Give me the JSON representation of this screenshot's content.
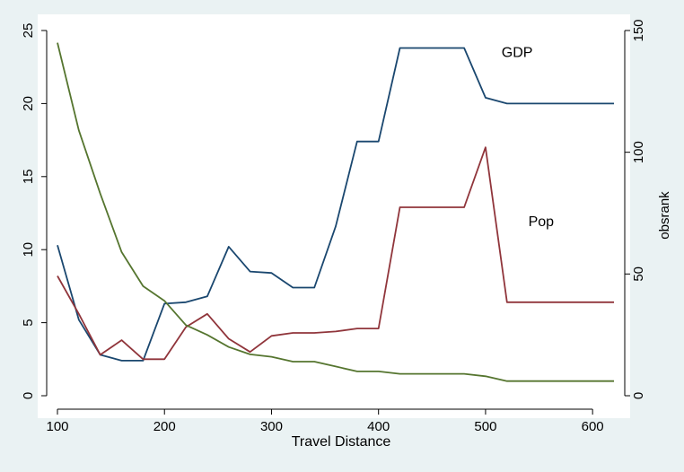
{
  "chart_data": {
    "type": "line",
    "title": "",
    "xlabel": "Travel Distance",
    "ylabel_left": "",
    "ylabel_right": "obsrank",
    "xlim": [
      100,
      620
    ],
    "ylim_left": [
      0,
      25
    ],
    "ylim_right": [
      0,
      150
    ],
    "x_ticks": [
      100,
      200,
      300,
      400,
      500,
      600
    ],
    "y_left_ticks": [
      0,
      5,
      10,
      15,
      20,
      25
    ],
    "y_right_ticks": [
      0,
      50,
      100,
      150
    ],
    "grid": false,
    "legend": "none",
    "annotations": [
      {
        "text": "GDP",
        "x": 515,
        "y": 23.2
      },
      {
        "text": "Pop",
        "x": 540,
        "y": 11.6
      }
    ],
    "series": [
      {
        "name": "GDP",
        "axis": "left",
        "color": "#1a476f",
        "x": [
          100,
          120,
          140,
          160,
          180,
          200,
          220,
          240,
          260,
          280,
          300,
          320,
          340,
          360,
          380,
          400,
          420,
          440,
          460,
          480,
          500,
          520,
          540,
          560,
          580,
          600,
          620
        ],
        "values": [
          10.3,
          5.2,
          2.8,
          2.4,
          2.4,
          6.3,
          6.4,
          6.8,
          10.2,
          8.5,
          8.4,
          7.4,
          7.4,
          11.6,
          17.4,
          17.4,
          23.8,
          23.8,
          23.8,
          23.8,
          20.4,
          20.0,
          20.0,
          20.0,
          20.0,
          20.0,
          20.0
        ]
      },
      {
        "name": "Pop",
        "axis": "left",
        "color": "#90353b",
        "x": [
          100,
          120,
          140,
          160,
          180,
          200,
          220,
          240,
          260,
          280,
          300,
          320,
          340,
          360,
          380,
          400,
          420,
          440,
          460,
          480,
          500,
          520,
          540,
          560,
          580,
          600,
          620
        ],
        "values": [
          8.2,
          5.6,
          2.8,
          3.8,
          2.5,
          2.5,
          4.7,
          5.6,
          3.9,
          3.0,
          4.1,
          4.3,
          4.3,
          4.4,
          4.6,
          4.6,
          12.9,
          12.9,
          12.9,
          12.9,
          17.0,
          6.4,
          6.4,
          6.4,
          6.4,
          6.4,
          6.4
        ]
      },
      {
        "name": "",
        "axis": "right",
        "color": "#55752f",
        "x": [
          100,
          120,
          140,
          160,
          180,
          200,
          220,
          240,
          260,
          280,
          300,
          320,
          340,
          360,
          380,
          400,
          420,
          440,
          460,
          480,
          500,
          520,
          540,
          560,
          580,
          600,
          620
        ],
        "values": [
          145,
          109,
          83,
          59,
          45,
          39,
          29,
          25,
          20,
          17,
          16,
          14,
          14,
          12,
          10,
          10,
          9,
          9,
          9,
          9,
          8,
          6,
          6,
          6,
          6,
          6,
          6
        ]
      }
    ]
  }
}
